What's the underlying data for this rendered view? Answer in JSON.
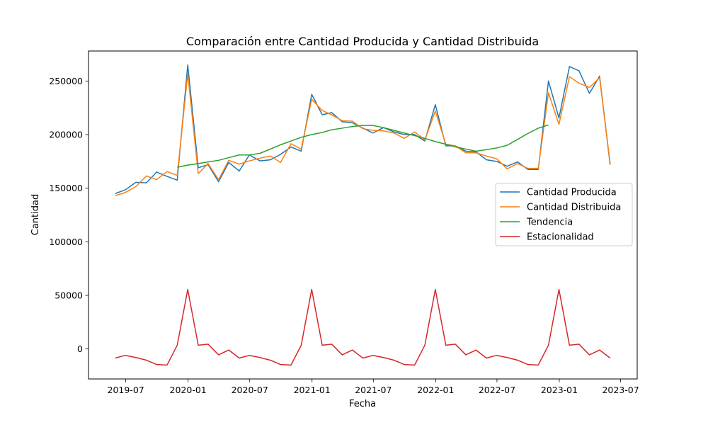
{
  "chart_data": {
    "type": "line",
    "title": "Comparación entre Cantidad Producida y Cantidad Distribuida",
    "xlabel": "Fecha",
    "ylabel": "Cantidad",
    "xlim": [
      "2019-03-13",
      "2023-08-19"
    ],
    "ylim": [
      -28000,
      278000
    ],
    "x_ticks": [
      "2019-07",
      "2020-01",
      "2020-07",
      "2021-01",
      "2021-07",
      "2022-01",
      "2022-07",
      "2023-01",
      "2023-07"
    ],
    "y_ticks": [
      0,
      50000,
      100000,
      150000,
      200000,
      250000
    ],
    "grid": false,
    "legend_position": "center-right",
    "series": [
      {
        "name": "Cantidad Producida",
        "color": "#1f77b4",
        "points": [
          [
            "2019-05-31",
            145000
          ],
          [
            "2019-06-30",
            148500
          ],
          [
            "2019-07-31",
            155500
          ],
          [
            "2019-08-31",
            155000
          ],
          [
            "2019-09-30",
            165000
          ],
          [
            "2019-10-31",
            161000
          ],
          [
            "2019-11-30",
            157500
          ],
          [
            "2019-12-31",
            265000
          ],
          [
            "2020-01-31",
            169000
          ],
          [
            "2020-02-29",
            172000
          ],
          [
            "2020-03-31",
            156000
          ],
          [
            "2020-04-30",
            174000
          ],
          [
            "2020-05-31",
            166000
          ],
          [
            "2020-06-30",
            181000
          ],
          [
            "2020-07-31",
            175500
          ],
          [
            "2020-08-31",
            176500
          ],
          [
            "2020-09-30",
            181500
          ],
          [
            "2020-10-31",
            188500
          ],
          [
            "2020-11-30",
            184500
          ],
          [
            "2020-12-31",
            237500
          ],
          [
            "2021-01-31",
            218500
          ],
          [
            "2021-02-28",
            220500
          ],
          [
            "2021-03-31",
            212000
          ],
          [
            "2021-04-30",
            211000
          ],
          [
            "2021-05-31",
            206000
          ],
          [
            "2021-06-30",
            201500
          ],
          [
            "2021-07-31",
            206500
          ],
          [
            "2021-08-31",
            202500
          ],
          [
            "2021-09-30",
            200000
          ],
          [
            "2021-10-31",
            200000
          ],
          [
            "2021-11-30",
            194000
          ],
          [
            "2021-12-31",
            228000
          ],
          [
            "2022-01-31",
            189500
          ],
          [
            "2022-02-28",
            189500
          ],
          [
            "2022-03-31",
            184500
          ],
          [
            "2022-04-30",
            184000
          ],
          [
            "2022-05-31",
            176500
          ],
          [
            "2022-06-30",
            175000
          ],
          [
            "2022-07-31",
            170500
          ],
          [
            "2022-08-31",
            174500
          ],
          [
            "2022-09-30",
            167500
          ],
          [
            "2022-10-31",
            167500
          ],
          [
            "2022-11-30",
            250000
          ],
          [
            "2022-12-31",
            215500
          ],
          [
            "2023-01-31",
            263500
          ],
          [
            "2023-02-28",
            259500
          ],
          [
            "2023-03-31",
            238500
          ],
          [
            "2023-04-30",
            254500
          ],
          [
            "2023-05-31",
            172000
          ]
        ]
      },
      {
        "name": "Cantidad Distribuida",
        "color": "#ff7f0e",
        "points": [
          [
            "2019-05-31",
            143000
          ],
          [
            "2019-06-30",
            146000
          ],
          [
            "2019-07-31",
            151500
          ],
          [
            "2019-08-31",
            161500
          ],
          [
            "2019-09-30",
            158000
          ],
          [
            "2019-10-31",
            165500
          ],
          [
            "2019-11-30",
            162000
          ],
          [
            "2019-12-31",
            257000
          ],
          [
            "2020-01-31",
            163500
          ],
          [
            "2020-02-29",
            173000
          ],
          [
            "2020-03-31",
            158000
          ],
          [
            "2020-04-30",
            176000
          ],
          [
            "2020-05-31",
            172500
          ],
          [
            "2020-06-30",
            175500
          ],
          [
            "2020-07-31",
            178000
          ],
          [
            "2020-08-31",
            180000
          ],
          [
            "2020-09-30",
            174000
          ],
          [
            "2020-10-31",
            191500
          ],
          [
            "2020-11-30",
            186500
          ],
          [
            "2020-12-31",
            233000
          ],
          [
            "2021-01-31",
            222500
          ],
          [
            "2021-02-28",
            218500
          ],
          [
            "2021-03-31",
            213000
          ],
          [
            "2021-04-30",
            212500
          ],
          [
            "2021-05-31",
            205500
          ],
          [
            "2021-06-30",
            204000
          ],
          [
            "2021-07-31",
            203500
          ],
          [
            "2021-08-31",
            201500
          ],
          [
            "2021-09-30",
            196500
          ],
          [
            "2021-10-31",
            202500
          ],
          [
            "2021-11-30",
            195000
          ],
          [
            "2021-12-31",
            222000
          ],
          [
            "2022-01-31",
            191000
          ],
          [
            "2022-02-28",
            189500
          ],
          [
            "2022-03-31",
            183000
          ],
          [
            "2022-04-30",
            183000
          ],
          [
            "2022-05-31",
            180000
          ],
          [
            "2022-06-30",
            177500
          ],
          [
            "2022-07-31",
            168000
          ],
          [
            "2022-08-31",
            173000
          ],
          [
            "2022-09-30",
            168500
          ],
          [
            "2022-10-31",
            168500
          ],
          [
            "2022-11-30",
            239000
          ],
          [
            "2022-12-31",
            209500
          ],
          [
            "2023-01-31",
            254000
          ],
          [
            "2023-02-28",
            248000
          ],
          [
            "2023-03-31",
            244000
          ],
          [
            "2023-04-30",
            253000
          ],
          [
            "2023-05-31",
            173500
          ]
        ]
      },
      {
        "name": "Tendencia",
        "color": "#2ca02c",
        "points": [
          [
            "2019-11-30",
            169500
          ],
          [
            "2019-12-31",
            171500
          ],
          [
            "2020-01-31",
            173000
          ],
          [
            "2020-02-29",
            174500
          ],
          [
            "2020-03-31",
            176000
          ],
          [
            "2020-04-30",
            178500
          ],
          [
            "2020-05-31",
            181000
          ],
          [
            "2020-06-30",
            181000
          ],
          [
            "2020-07-31",
            182500
          ],
          [
            "2020-08-31",
            186500
          ],
          [
            "2020-09-30",
            190500
          ],
          [
            "2020-10-31",
            194000
          ],
          [
            "2020-11-30",
            197500
          ],
          [
            "2020-12-31",
            200000
          ],
          [
            "2021-01-31",
            202000
          ],
          [
            "2021-02-28",
            204500
          ],
          [
            "2021-03-31",
            206000
          ],
          [
            "2021-04-30",
            207500
          ],
          [
            "2021-05-31",
            208500
          ],
          [
            "2021-06-30",
            208500
          ],
          [
            "2021-07-31",
            206500
          ],
          [
            "2021-08-31",
            204000
          ],
          [
            "2021-09-30",
            201500
          ],
          [
            "2021-10-31",
            199000
          ],
          [
            "2021-11-30",
            196500
          ],
          [
            "2021-12-31",
            193500
          ],
          [
            "2022-01-31",
            191000
          ],
          [
            "2022-02-28",
            188500
          ],
          [
            "2022-03-31",
            186500
          ],
          [
            "2022-04-30",
            184500
          ],
          [
            "2022-05-31",
            186000
          ],
          [
            "2022-06-30",
            187500
          ],
          [
            "2022-07-31",
            190000
          ],
          [
            "2022-08-31",
            195500
          ],
          [
            "2022-09-30",
            201000
          ],
          [
            "2022-10-31",
            206000
          ],
          [
            "2022-11-30",
            209000
          ]
        ]
      },
      {
        "name": "Estacionalidad",
        "color": "#d62728",
        "points": [
          [
            "2019-05-31",
            -8500
          ],
          [
            "2019-06-30",
            -6000
          ],
          [
            "2019-07-31",
            -8000
          ],
          [
            "2019-08-31",
            -10500
          ],
          [
            "2019-09-30",
            -14500
          ],
          [
            "2019-10-31",
            -15000
          ],
          [
            "2019-11-30",
            3500
          ],
          [
            "2019-12-31",
            55500
          ],
          [
            "2020-01-31",
            3500
          ],
          [
            "2020-02-29",
            4500
          ],
          [
            "2020-03-31",
            -5500
          ],
          [
            "2020-04-30",
            -1000
          ],
          [
            "2020-05-31",
            -8500
          ],
          [
            "2020-06-30",
            -6000
          ],
          [
            "2020-07-31",
            -8000
          ],
          [
            "2020-08-31",
            -10500
          ],
          [
            "2020-09-30",
            -14500
          ],
          [
            "2020-10-31",
            -15000
          ],
          [
            "2020-11-30",
            3500
          ],
          [
            "2020-12-31",
            55500
          ],
          [
            "2021-01-31",
            3500
          ],
          [
            "2021-02-28",
            4500
          ],
          [
            "2021-03-31",
            -5500
          ],
          [
            "2021-04-30",
            -1000
          ],
          [
            "2021-05-31",
            -8500
          ],
          [
            "2021-06-30",
            -6000
          ],
          [
            "2021-07-31",
            -8000
          ],
          [
            "2021-08-31",
            -10500
          ],
          [
            "2021-09-30",
            -14500
          ],
          [
            "2021-10-31",
            -15000
          ],
          [
            "2021-11-30",
            3500
          ],
          [
            "2021-12-31",
            55500
          ],
          [
            "2022-01-31",
            3500
          ],
          [
            "2022-02-28",
            4500
          ],
          [
            "2022-03-31",
            -5500
          ],
          [
            "2022-04-30",
            -1000
          ],
          [
            "2022-05-31",
            -8500
          ],
          [
            "2022-06-30",
            -6000
          ],
          [
            "2022-07-31",
            -8000
          ],
          [
            "2022-08-31",
            -10500
          ],
          [
            "2022-09-30",
            -14500
          ],
          [
            "2022-10-31",
            -15000
          ],
          [
            "2022-11-30",
            3500
          ],
          [
            "2022-12-31",
            55500
          ],
          [
            "2023-01-31",
            3500
          ],
          [
            "2023-02-28",
            4500
          ],
          [
            "2023-03-31",
            -5500
          ],
          [
            "2023-04-30",
            -1000
          ],
          [
            "2023-05-31",
            -8500
          ]
        ]
      }
    ]
  }
}
